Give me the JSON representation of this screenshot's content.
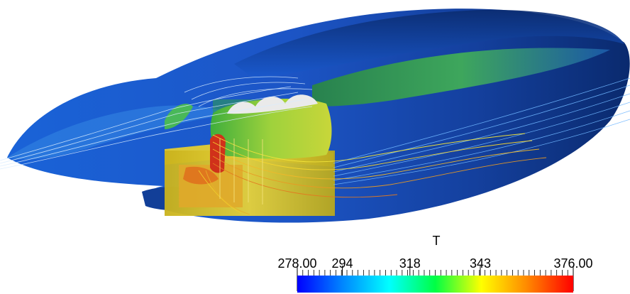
{
  "scalar_bar": {
    "title": "T",
    "min_label": "278.00",
    "max_label": "376.00",
    "min": 278,
    "max": 376,
    "labeled_ticks": [
      {
        "value": 294,
        "label": "294"
      },
      {
        "value": 318,
        "label": "318"
      },
      {
        "value": 343,
        "label": "343"
      }
    ],
    "minor_tick_count": 50,
    "colormap": [
      "#0000ff",
      "#0088ff",
      "#00ffff",
      "#00ff44",
      "#ffff00",
      "#ff8800",
      "#ff0000"
    ]
  },
  "scene": {
    "shell_color_dark": "#0a2f7e",
    "shell_color": "#1e56c8",
    "core_color": "#d4c02a",
    "hot_color": "#d0311a",
    "cool_color": "#5fc944"
  }
}
